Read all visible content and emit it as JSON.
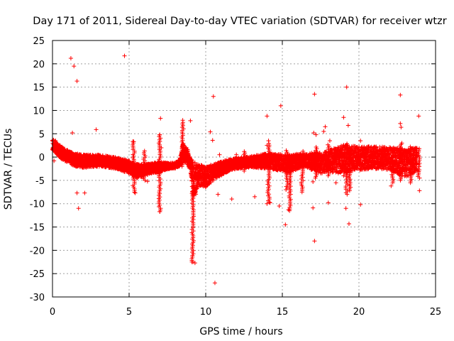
{
  "chart_data": {
    "type": "scatter",
    "title": "Day 171 of 2011, Sidereal Day-to-day VTEC variation (SDTVAR) for receiver wtzr",
    "xlabel": "GPS time / hours",
    "ylabel": "SDTVAR / TECUs",
    "xlim": [
      0,
      25
    ],
    "ylim": [
      -30,
      25
    ],
    "xticks": [
      0,
      5,
      10,
      15,
      20,
      25
    ],
    "yticks": [
      -30,
      -25,
      -20,
      -15,
      -10,
      -5,
      0,
      5,
      10,
      15,
      20,
      25
    ],
    "grid": true,
    "marker": "+",
    "color": "#ff0000",
    "series": [
      {
        "name": "SDTVAR",
        "band": [
          [
            0.0,
            1.5,
            4.0
          ],
          [
            0.3,
            0.5,
            3.0
          ],
          [
            0.6,
            -0.5,
            2.2
          ],
          [
            1.0,
            -1.3,
            1.5
          ],
          [
            1.5,
            -2.0,
            0.8
          ],
          [
            2.0,
            -2.3,
            0.5
          ],
          [
            3.0,
            -2.0,
            0.5
          ],
          [
            4.0,
            -2.5,
            0.0
          ],
          [
            4.5,
            -2.9,
            -0.3
          ],
          [
            5.0,
            -3.6,
            -0.8
          ],
          [
            5.5,
            -4.5,
            -1.5
          ],
          [
            6.0,
            -4.0,
            -1.5
          ],
          [
            6.5,
            -3.5,
            -1.3
          ],
          [
            7.0,
            -3.2,
            -1.0
          ],
          [
            7.5,
            -2.6,
            -1.3
          ],
          [
            8.0,
            -2.4,
            -1.2
          ],
          [
            8.3,
            -2.0,
            -0.5
          ],
          [
            8.5,
            -1.0,
            3.0
          ],
          [
            8.8,
            -1.5,
            1.8
          ],
          [
            9.0,
            -3.0,
            -0.3
          ],
          [
            9.2,
            -10.0,
            -1.0
          ],
          [
            9.5,
            -6.0,
            -1.5
          ],
          [
            10.0,
            -6.5,
            -2.0
          ],
          [
            10.5,
            -5.0,
            -1.5
          ],
          [
            11.0,
            -4.0,
            -1.0
          ],
          [
            11.5,
            -3.0,
            -0.5
          ],
          [
            12.0,
            -2.5,
            -0.2
          ],
          [
            13.0,
            -2.2,
            0.2
          ],
          [
            14.0,
            -2.5,
            0.8
          ],
          [
            15.0,
            -3.0,
            0.6
          ],
          [
            15.5,
            -3.5,
            0.3
          ],
          [
            16.0,
            -2.5,
            0.8
          ],
          [
            16.5,
            -2.0,
            0.6
          ],
          [
            17.0,
            -3.0,
            1.0
          ],
          [
            17.5,
            -3.5,
            1.0
          ],
          [
            18.0,
            -3.2,
            1.4
          ],
          [
            19.0,
            -3.8,
            2.6
          ],
          [
            19.5,
            -3.0,
            2.6
          ],
          [
            20.0,
            -2.8,
            2.2
          ],
          [
            21.0,
            -2.5,
            2.3
          ],
          [
            22.0,
            -2.7,
            2.1
          ],
          [
            23.0,
            -4.5,
            1.8
          ],
          [
            23.8,
            -3.0,
            2.0
          ]
        ],
        "spikes": [
          [
            5.3,
            -7.5,
            3.5
          ],
          [
            6.0,
            -5.0,
            1.5
          ],
          [
            7.0,
            -11.7,
            5.0
          ],
          [
            8.5,
            -2.0,
            7.5
          ],
          [
            9.15,
            -22.5,
            -1.0
          ],
          [
            12.5,
            -3.0,
            1.5
          ],
          [
            14.1,
            -9.7,
            3.0
          ],
          [
            15.3,
            -7.0,
            1.5
          ],
          [
            15.5,
            -11.5,
            0.5
          ],
          [
            16.3,
            -7.5,
            1.5
          ],
          [
            17.2,
            -4.5,
            2.5
          ],
          [
            18.0,
            -4.0,
            3.0
          ],
          [
            19.2,
            -8.0,
            3.0
          ],
          [
            19.4,
            -7.2,
            2.5
          ],
          [
            22.2,
            -5.5,
            2.0
          ],
          [
            22.7,
            -5.0,
            2.8
          ],
          [
            23.4,
            -5.5,
            2.5
          ],
          [
            23.9,
            -4.5,
            2.0
          ]
        ],
        "outliers": [
          [
            0.2,
            3.5
          ],
          [
            0.5,
            2.5
          ],
          [
            1.2,
            21.2
          ],
          [
            1.4,
            19.5
          ],
          [
            1.6,
            16.3
          ],
          [
            1.3,
            5.2
          ],
          [
            1.6,
            -7.7
          ],
          [
            1.7,
            -11.0
          ],
          [
            2.1,
            -7.7
          ],
          [
            2.85,
            5.9
          ],
          [
            4.7,
            21.7
          ],
          [
            5.4,
            -7.7
          ],
          [
            5.3,
            3.3
          ],
          [
            6.2,
            -5.2
          ],
          [
            7.05,
            8.3
          ],
          [
            7.0,
            -11.7
          ],
          [
            7.0,
            4.8
          ],
          [
            7.1,
            2.0
          ],
          [
            8.5,
            7.9
          ],
          [
            9.0,
            7.8
          ],
          [
            9.1,
            -22.5
          ],
          [
            9.3,
            -22.7
          ],
          [
            10.3,
            5.4
          ],
          [
            10.5,
            13.0
          ],
          [
            10.6,
            -27.0
          ],
          [
            10.45,
            3.6
          ],
          [
            10.8,
            -8.0
          ],
          [
            10.9,
            0.5
          ],
          [
            11.7,
            -9.0
          ],
          [
            13.2,
            -8.5
          ],
          [
            14.0,
            8.8
          ],
          [
            14.1,
            3.5
          ],
          [
            14.0,
            2.5
          ],
          [
            14.2,
            -9.8
          ],
          [
            14.0,
            -10.0
          ],
          [
            14.8,
            -10.5
          ],
          [
            14.9,
            11.0
          ],
          [
            15.2,
            -14.5
          ],
          [
            15.4,
            -11.3
          ],
          [
            17.0,
            -10.9
          ],
          [
            17.1,
            13.5
          ],
          [
            17.1,
            -18.0
          ],
          [
            17.05,
            5.2
          ],
          [
            17.2,
            4.8
          ],
          [
            17.0,
            -5.3
          ],
          [
            17.8,
            6.5
          ],
          [
            17.7,
            5.5
          ],
          [
            18.0,
            -9.8
          ],
          [
            18.1,
            3.5
          ],
          [
            18.5,
            -5.5
          ],
          [
            19.0,
            8.5
          ],
          [
            19.0,
            -4.0
          ],
          [
            19.2,
            15.0
          ],
          [
            19.3,
            6.8
          ],
          [
            19.15,
            -11.0
          ],
          [
            19.35,
            -14.3
          ],
          [
            20.1,
            -10.2
          ],
          [
            20.1,
            3.5
          ],
          [
            22.1,
            -6.2
          ],
          [
            22.7,
            13.3
          ],
          [
            22.7,
            7.2
          ],
          [
            22.75,
            6.4
          ],
          [
            22.8,
            3.0
          ],
          [
            23.9,
            8.8
          ],
          [
            23.95,
            -7.2
          ],
          [
            23.3,
            0.0
          ],
          [
            4.8,
            -1.2
          ],
          [
            2.5,
            0.0
          ],
          [
            12.0,
            0.5
          ],
          [
            0.1,
            -0.8
          ]
        ]
      }
    ]
  }
}
